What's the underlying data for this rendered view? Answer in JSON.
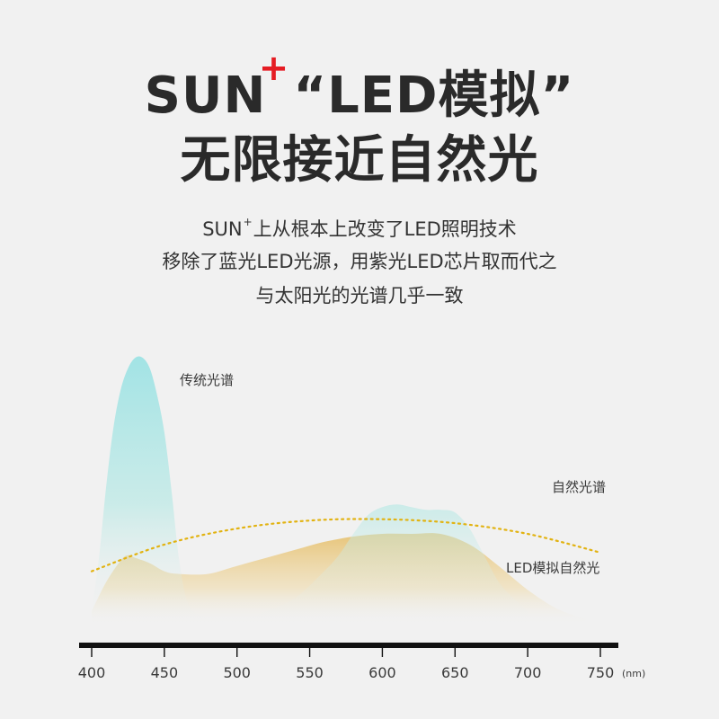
{
  "headline": {
    "brand": "SUN",
    "plus": "+",
    "line1_rest": "“LED模拟”",
    "line2": "无限接近自然光"
  },
  "subtitle": {
    "line1_brand": "SUN",
    "line1_plus": "+",
    "line1_rest": "上从根本上改变了LED照明技术",
    "line2": "移除了蓝光LED光源，用紫光LED芯片取而代之",
    "line3": "与太阳光的光谱几乎一致"
  },
  "colors": {
    "accent_red": "#e51c23",
    "traditional": "#8fe0e2",
    "led": "#e6bf6a",
    "natural": "#e2b312",
    "axis": "#111111"
  },
  "chart_data": {
    "type": "area",
    "x_unit": "(nm)",
    "xlim": [
      400,
      750
    ],
    "x_ticks": [
      400,
      450,
      500,
      550,
      600,
      650,
      700,
      750
    ],
    "ylim": [
      0,
      1
    ],
    "grid": false,
    "legend": "inline",
    "series": [
      {
        "key": "traditional",
        "name": "传统光谱",
        "style": "filled-area",
        "x": [
          400,
          405,
          410,
          415,
          420,
          425,
          430,
          435,
          440,
          445,
          450,
          455,
          460,
          465,
          470,
          480,
          500,
          520,
          540,
          560,
          570,
          580,
          590,
          600,
          610,
          620,
          630,
          640,
          650,
          660,
          670,
          680,
          690,
          700
        ],
        "y": [
          0.05,
          0.25,
          0.52,
          0.74,
          0.88,
          0.96,
          1.0,
          1.0,
          0.96,
          0.86,
          0.72,
          0.5,
          0.25,
          0.1,
          0.05,
          0.03,
          0.02,
          0.05,
          0.1,
          0.2,
          0.26,
          0.34,
          0.41,
          0.44,
          0.45,
          0.44,
          0.43,
          0.43,
          0.42,
          0.36,
          0.26,
          0.16,
          0.1,
          0.05
        ]
      },
      {
        "key": "led",
        "name": "LED模拟自然光",
        "style": "filled-area",
        "x": [
          400,
          410,
          420,
          425,
          430,
          440,
          450,
          460,
          480,
          500,
          520,
          540,
          560,
          580,
          600,
          620,
          640,
          660,
          680,
          700,
          720,
          740
        ],
        "y": [
          0.05,
          0.16,
          0.24,
          0.26,
          0.25,
          0.23,
          0.2,
          0.19,
          0.19,
          0.22,
          0.25,
          0.28,
          0.31,
          0.33,
          0.34,
          0.34,
          0.34,
          0.3,
          0.22,
          0.13,
          0.06,
          0.02
        ]
      },
      {
        "key": "natural",
        "name": "自然光谱",
        "style": "dotted-line",
        "x": [
          400,
          450,
          500,
          550,
          600,
          650,
          700,
          750
        ],
        "y": [
          0.2,
          0.3,
          0.36,
          0.39,
          0.395,
          0.38,
          0.34,
          0.27
        ]
      }
    ]
  }
}
